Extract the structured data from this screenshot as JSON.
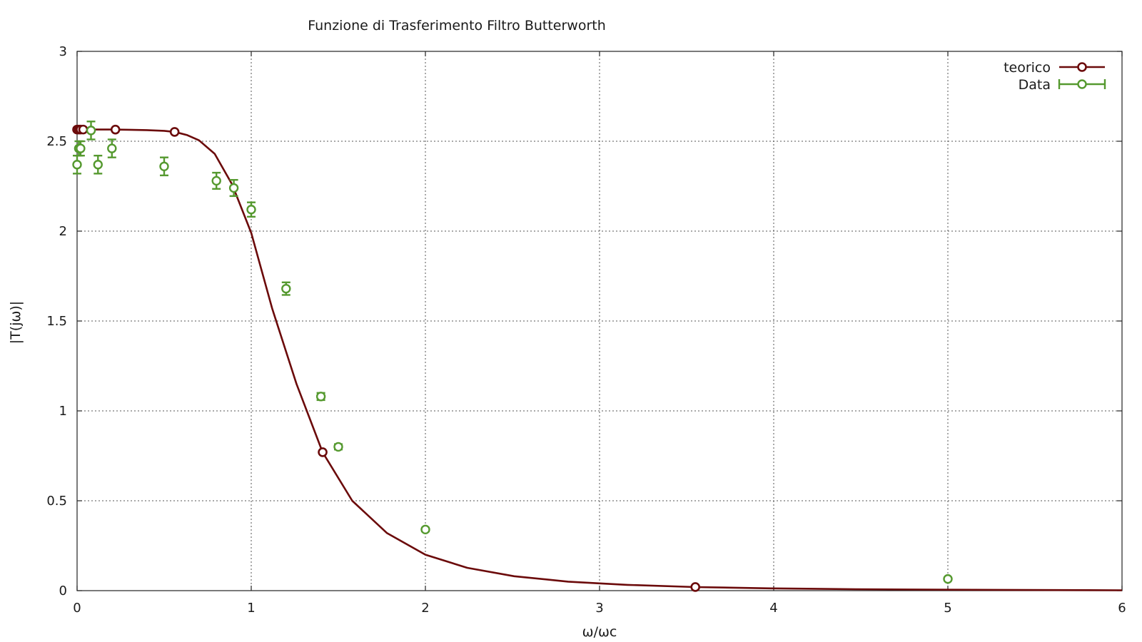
{
  "chart_data": {
    "type": "line",
    "title": "Funzione di Trasferimento Filtro Butterworth",
    "xlabel": "ω/ωc",
    "ylabel": "|T(jω)|",
    "xlim": [
      0,
      6
    ],
    "ylim": [
      0,
      3
    ],
    "grid": true,
    "legend_position": "top-right",
    "x_ticks": [
      "0",
      "1",
      "2",
      "3",
      "4",
      "5",
      "6"
    ],
    "y_ticks": [
      "0",
      "0.5",
      "1",
      "1.5",
      "2",
      "2.5",
      "3"
    ],
    "series": [
      {
        "name": "teorico",
        "color": "#6b0a0a",
        "style": "line-with-sparse-circle-markers",
        "x": [
          0,
          0.02,
          0.05,
          0.1,
          0.2,
          0.3,
          0.4,
          0.5,
          0.56,
          0.63,
          0.7,
          0.79,
          0.89,
          1.0,
          1.12,
          1.26,
          1.41,
          1.58,
          1.78,
          2.0,
          2.24,
          2.51,
          2.82,
          3.16,
          3.55,
          3.98,
          4.47,
          5.01,
          5.62,
          6.0
        ],
        "y": [
          2.565,
          2.565,
          2.565,
          2.565,
          2.565,
          2.564,
          2.562,
          2.558,
          2.552,
          2.535,
          2.505,
          2.43,
          2.26,
          1.99,
          1.57,
          1.15,
          0.77,
          0.5,
          0.32,
          0.2,
          0.127,
          0.08,
          0.05,
          0.032,
          0.02,
          0.0126,
          0.008,
          0.005,
          0.003,
          0.002
        ],
        "marker_x": [
          0,
          0.01,
          0.02,
          0.035,
          0.22,
          0.56,
          1.41,
          3.55
        ]
      },
      {
        "name": "Data",
        "color": "#55992f",
        "style": "points-with-errorbars",
        "points": [
          {
            "x": 0.0,
            "y": 2.37,
            "err": 0.05
          },
          {
            "x": 0.01,
            "y": 2.46,
            "err": 0.04
          },
          {
            "x": 0.02,
            "y": 2.46,
            "err": 0.04
          },
          {
            "x": 0.08,
            "y": 2.56,
            "err": 0.05
          },
          {
            "x": 0.12,
            "y": 2.37,
            "err": 0.05
          },
          {
            "x": 0.2,
            "y": 2.46,
            "err": 0.05
          },
          {
            "x": 0.5,
            "y": 2.36,
            "err": 0.05
          },
          {
            "x": 0.8,
            "y": 2.28,
            "err": 0.045
          },
          {
            "x": 0.9,
            "y": 2.24,
            "err": 0.045
          },
          {
            "x": 1.0,
            "y": 2.12,
            "err": 0.04
          },
          {
            "x": 1.2,
            "y": 1.68,
            "err": 0.035
          },
          {
            "x": 1.4,
            "y": 1.08,
            "err": 0.02
          },
          {
            "x": 1.5,
            "y": 0.8,
            "err": 0.015
          },
          {
            "x": 2.0,
            "y": 0.34,
            "err": 0.01
          },
          {
            "x": 5.0,
            "y": 0.065,
            "err": 0.008
          }
        ]
      }
    ]
  }
}
